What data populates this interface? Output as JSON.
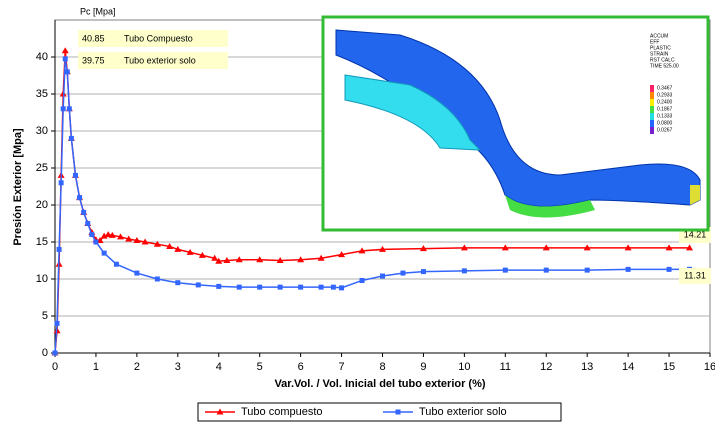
{
  "chart_data": {
    "type": "line",
    "xlabel": "Var.Vol. / Vol. Inicial del tubo exterior (%)",
    "ylabel": "Presión Exterior [Mpa]",
    "xlim": [
      0,
      16
    ],
    "ylim": [
      0,
      45
    ],
    "xticks": [
      0,
      1,
      2,
      3,
      4,
      5,
      6,
      7,
      8,
      9,
      10,
      11,
      12,
      13,
      14,
      15,
      16
    ],
    "yticks": [
      0,
      5,
      10,
      15,
      20,
      25,
      30,
      35,
      40
    ],
    "grid": true,
    "legend": "bottom",
    "series": [
      {
        "name": "Tubo compuesto",
        "color": "#ff0000",
        "marker": "triangle",
        "x": [
          0,
          0.05,
          0.1,
          0.15,
          0.2,
          0.25,
          0.3,
          0.35,
          0.4,
          0.5,
          0.6,
          0.7,
          0.8,
          0.9,
          1.0,
          1.1,
          1.2,
          1.3,
          1.4,
          1.6,
          1.8,
          2.0,
          2.2,
          2.5,
          2.8,
          3.0,
          3.3,
          3.6,
          3.9,
          4.0,
          4.2,
          4.5,
          5.0,
          5.5,
          6.0,
          6.5,
          7.0,
          7.5,
          8,
          9,
          10,
          11,
          12,
          13,
          14,
          15,
          15.5
        ],
        "values": [
          0,
          3,
          12,
          24,
          35,
          40.85,
          38,
          33,
          29,
          24,
          21,
          19,
          17.5,
          16.3,
          15.3,
          15.2,
          15.8,
          16,
          15.9,
          15.7,
          15.4,
          15.2,
          15,
          14.7,
          14.4,
          14,
          13.6,
          13.2,
          12.8,
          12.4,
          12.5,
          12.6,
          12.6,
          12.5,
          12.6,
          12.8,
          13.3,
          13.8,
          14,
          14.1,
          14.2,
          14.2,
          14.2,
          14.2,
          14.2,
          14.2,
          14.21
        ]
      },
      {
        "name": "Tubo exterior solo",
        "color": "#3366ff",
        "marker": "square",
        "x": [
          0,
          0.05,
          0.1,
          0.15,
          0.2,
          0.25,
          0.3,
          0.35,
          0.4,
          0.5,
          0.6,
          0.7,
          0.8,
          0.9,
          1.0,
          1.2,
          1.5,
          2,
          2.5,
          3,
          3.5,
          4,
          4.5,
          5,
          5.5,
          6,
          6.5,
          6.8,
          7.0,
          7.5,
          8,
          8.5,
          9,
          10,
          11,
          12,
          13,
          14,
          15,
          15.5
        ],
        "values": [
          0,
          4,
          14,
          23,
          33,
          39.75,
          38,
          33,
          29,
          24,
          21,
          19,
          17.5,
          16,
          15,
          13.5,
          12,
          10.8,
          10,
          9.5,
          9.2,
          9,
          8.9,
          8.9,
          8.9,
          8.9,
          8.9,
          8.9,
          8.8,
          9.8,
          10.4,
          10.8,
          11,
          11.1,
          11.2,
          11.2,
          11.2,
          11.3,
          11.3,
          11.31
        ]
      }
    ],
    "pc_label": "Pc [Mpa]",
    "pc_table": [
      [
        "40.85",
        "Tubo Compuesto"
      ],
      [
        "39.75",
        "Tubo exterior solo"
      ]
    ],
    "end_labels": [
      "14.21",
      "11.31"
    ],
    "inset": {
      "legend_title": [
        "ACCUM",
        "EFF",
        "PLASTIC",
        "STRAIN",
        "RST CALC",
        "TIME 525.00"
      ],
      "scale": [
        "0.3467",
        "0.2933",
        "0.2400",
        "0.1867",
        "0.1333",
        "0.0800",
        "0.0267"
      ]
    }
  }
}
